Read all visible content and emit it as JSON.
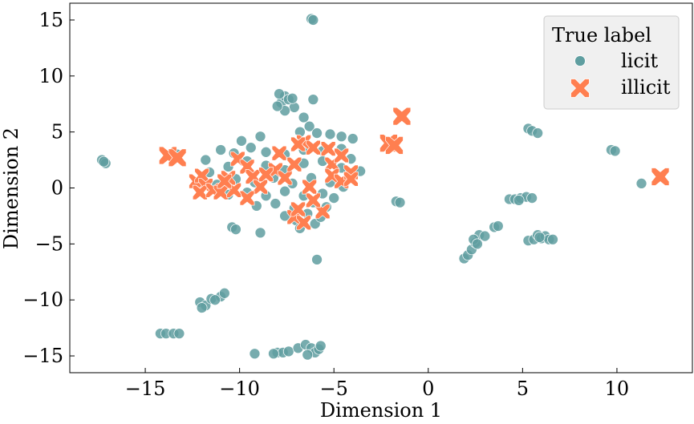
{
  "chart_data": {
    "type": "scatter",
    "xlabel": "Dimension 1",
    "ylabel": "Dimension 2",
    "xlim": [
      -19,
      14
    ],
    "ylim": [
      -16.5,
      16.5
    ],
    "xticks": [
      -15,
      -10,
      -5,
      0,
      5,
      10
    ],
    "yticks": [
      -15,
      -10,
      -5,
      0,
      5,
      10,
      15
    ],
    "xtick_labels": [
      "−15",
      "−10",
      "−5",
      "0",
      "5",
      "10"
    ],
    "ytick_labels": [
      "−15",
      "−10",
      "−5",
      "0",
      "5",
      "10",
      "15"
    ],
    "grid": false,
    "legend": {
      "title": "True label",
      "position": "top-right",
      "entries": [
        "licit",
        "illicit"
      ]
    },
    "colors": {
      "licit": "#5f9ea0",
      "illicit": "#ff7f50"
    },
    "series": [
      {
        "name": "licit",
        "marker": "circle",
        "points": [
          [
            -6.2,
            15.1
          ],
          [
            -6.1,
            15.0
          ],
          [
            -17.3,
            2.5
          ],
          [
            -17.1,
            2.2
          ],
          [
            -17.2,
            2.35
          ],
          [
            -13.6,
            2.9
          ],
          [
            -13.3,
            3.0
          ],
          [
            -13.5,
            2.8
          ],
          [
            -14.2,
            -13.0
          ],
          [
            -13.9,
            -13.0
          ],
          [
            -13.5,
            -13.0
          ],
          [
            -13.2,
            -13.0
          ],
          [
            -12.1,
            -10.2
          ],
          [
            -11.8,
            -10.5
          ],
          [
            -11.5,
            -9.9
          ],
          [
            -11.0,
            -9.7
          ],
          [
            -10.8,
            -9.4
          ],
          [
            -11.3,
            -10.0
          ],
          [
            -12.0,
            -10.7
          ],
          [
            -10.4,
            -3.5
          ],
          [
            -10.2,
            -3.7
          ],
          [
            -8.9,
            -4.0
          ],
          [
            -5.9,
            -6.4
          ],
          [
            -8.0,
            -14.7
          ],
          [
            -7.7,
            -14.7
          ],
          [
            -7.4,
            -14.6
          ],
          [
            -8.2,
            -14.8
          ],
          [
            -9.2,
            -14.8
          ],
          [
            -6.9,
            -14.3
          ],
          [
            -6.5,
            -14.0
          ],
          [
            -6.2,
            -14.3
          ],
          [
            -6.0,
            -14.7
          ],
          [
            -5.8,
            -14.4
          ],
          [
            -6.4,
            -14.9
          ],
          [
            -5.7,
            -14.1
          ],
          [
            -2.1,
            3.6
          ],
          [
            -1.7,
            -1.2
          ],
          [
            -1.5,
            -1.3
          ],
          [
            1.9,
            -6.3
          ],
          [
            2.1,
            -6.0
          ],
          [
            2.3,
            -5.5
          ],
          [
            2.5,
            -4.9
          ],
          [
            2.7,
            -4.2
          ],
          [
            3.0,
            -4.3
          ],
          [
            2.4,
            -4.6
          ],
          [
            2.6,
            -5.0
          ],
          [
            3.5,
            -3.5
          ],
          [
            3.7,
            -3.4
          ],
          [
            4.3,
            -1.0
          ],
          [
            4.6,
            -1.0
          ],
          [
            4.9,
            -0.9
          ],
          [
            5.2,
            -0.8
          ],
          [
            5.5,
            -0.9
          ],
          [
            4.8,
            -1.1
          ],
          [
            5.3,
            5.3
          ],
          [
            5.5,
            5.1
          ],
          [
            5.8,
            4.9
          ],
          [
            5.3,
            -4.7
          ],
          [
            5.6,
            -4.6
          ],
          [
            5.8,
            -4.2
          ],
          [
            6.0,
            -4.5
          ],
          [
            6.2,
            -4.3
          ],
          [
            6.4,
            -4.6
          ],
          [
            6.6,
            -4.6
          ],
          [
            5.9,
            -4.4
          ],
          [
            9.7,
            3.4
          ],
          [
            9.9,
            3.3
          ],
          [
            11.3,
            0.4
          ],
          [
            -7.8,
            7.6
          ],
          [
            -7.6,
            8.2
          ],
          [
            -7.9,
            8.4
          ],
          [
            -7.4,
            7.9
          ],
          [
            -7.1,
            7.2
          ],
          [
            -7.6,
            6.9
          ],
          [
            -7.2,
            8.0
          ],
          [
            -8.0,
            7.3
          ],
          [
            -6.1,
            7.9
          ],
          [
            -6.3,
            5.5
          ],
          [
            -6.6,
            6.3
          ],
          [
            -11.8,
            2.5
          ],
          [
            -11.0,
            3.4
          ],
          [
            -10.3,
            3.1
          ],
          [
            -9.4,
            3.6
          ],
          [
            -8.6,
            3.2
          ],
          [
            -7.6,
            3.0
          ],
          [
            -6.6,
            3.4
          ],
          [
            -5.6,
            3.3
          ],
          [
            -4.6,
            3.5
          ],
          [
            -4.1,
            2.6
          ],
          [
            -3.6,
            1.5
          ],
          [
            -11.6,
            1.4
          ],
          [
            -10.6,
            1.9
          ],
          [
            -9.6,
            2.4
          ],
          [
            -8.6,
            2.0
          ],
          [
            -7.6,
            1.6
          ],
          [
            -6.6,
            2.2
          ],
          [
            -5.6,
            2.4
          ],
          [
            -4.6,
            1.8
          ],
          [
            -4.2,
            0.9
          ],
          [
            -11.2,
            0.3
          ],
          [
            -10.2,
            0.8
          ],
          [
            -9.2,
            0.5
          ],
          [
            -8.2,
            0.9
          ],
          [
            -7.2,
            0.4
          ],
          [
            -6.2,
            0.9
          ],
          [
            -5.2,
            0.5
          ],
          [
            -4.5,
            0.1
          ],
          [
            -10.6,
            -0.6
          ],
          [
            -9.6,
            -0.4
          ],
          [
            -8.6,
            -0.7
          ],
          [
            -7.6,
            -0.3
          ],
          [
            -6.6,
            -0.7
          ],
          [
            -5.6,
            -0.5
          ],
          [
            -5.0,
            -0.9
          ],
          [
            -9.1,
            -1.6
          ],
          [
            -8.1,
            -1.4
          ],
          [
            -7.1,
            -1.8
          ],
          [
            -6.1,
            -1.3
          ],
          [
            -5.4,
            -1.7
          ],
          [
            -7.6,
            -2.5
          ],
          [
            -7.0,
            -2.9
          ],
          [
            -6.4,
            -2.3
          ],
          [
            -6.0,
            -3.2
          ],
          [
            -6.8,
            -3.6
          ],
          [
            -5.7,
            -2.6
          ],
          [
            -5.2,
            4.8
          ],
          [
            -4.6,
            4.6
          ],
          [
            -4.0,
            4.4
          ],
          [
            -5.9,
            4.9
          ],
          [
            -8.9,
            4.6
          ],
          [
            -9.9,
            4.2
          ],
          [
            -6.8,
            5.0
          ]
        ]
      },
      {
        "name": "illicit",
        "marker": "x",
        "points": [
          [
            -1.4,
            6.4
          ],
          [
            12.3,
            1.0
          ],
          [
            -2.1,
            4.0
          ],
          [
            -1.8,
            3.8
          ],
          [
            -13.8,
            2.9
          ],
          [
            -13.3,
            2.7
          ],
          [
            -12.3,
            0.6
          ],
          [
            -12.0,
            1.1
          ],
          [
            -11.8,
            0.2
          ],
          [
            -12.1,
            -0.4
          ],
          [
            -11.4,
            -0.2
          ],
          [
            -11.0,
            -0.4
          ],
          [
            -10.1,
            2.6
          ],
          [
            -9.6,
            1.9
          ],
          [
            -9.3,
            1.0
          ],
          [
            -8.9,
            0.1
          ],
          [
            -9.6,
            -0.9
          ],
          [
            -10.6,
            0.9
          ],
          [
            -10.3,
            -0.2
          ],
          [
            -8.1,
            1.6
          ],
          [
            -7.6,
            0.9
          ],
          [
            -7.1,
            2.1
          ],
          [
            -6.6,
            4.1
          ],
          [
            -6.1,
            3.6
          ],
          [
            -7.9,
            3.1
          ],
          [
            -6.9,
            3.9
          ],
          [
            -7.1,
            -2.6
          ],
          [
            -6.6,
            -3.1
          ],
          [
            -6.9,
            -1.9
          ],
          [
            -5.6,
            -2.1
          ],
          [
            -6.1,
            -1.1
          ],
          [
            -5.1,
            2.1
          ],
          [
            -5.1,
            1.1
          ],
          [
            -4.6,
            0.6
          ],
          [
            -4.1,
            1.4
          ],
          [
            -4.1,
            0.8
          ],
          [
            -5.3,
            3.5
          ],
          [
            -4.6,
            2.9
          ],
          [
            -8.6,
            1.2
          ],
          [
            -10.8,
            0.6
          ],
          [
            -6.3,
            0.1
          ]
        ]
      }
    ]
  }
}
